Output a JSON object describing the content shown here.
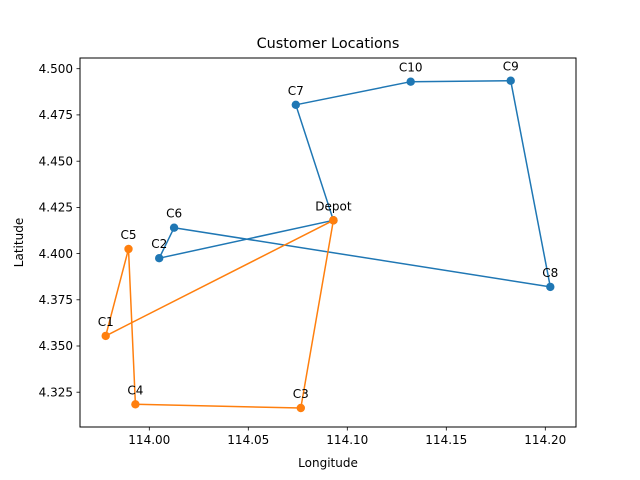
{
  "chart_data": {
    "type": "line",
    "title": "Customer Locations",
    "xlabel": "Longitude",
    "ylabel": "Latitude",
    "xlim": [
      113.965,
      114.2155
    ],
    "ylim": [
      4.3062,
      4.5058
    ],
    "xticks": [
      114.0,
      114.05,
      114.1,
      114.15,
      114.2
    ],
    "xtick_labels": [
      "114.00",
      "114.05",
      "114.10",
      "114.15",
      "114.20"
    ],
    "yticks": [
      4.325,
      4.35,
      4.375,
      4.4,
      4.425,
      4.45,
      4.475,
      4.5
    ],
    "ytick_labels": [
      "4.325",
      "4.350",
      "4.375",
      "4.400",
      "4.425",
      "4.450",
      "4.475",
      "4.500"
    ],
    "grid": false,
    "legend": false,
    "points": [
      {
        "label": "Depot",
        "x": 114.093,
        "y": 4.418
      },
      {
        "label": "C1",
        "x": 113.978,
        "y": 4.3555
      },
      {
        "label": "C2",
        "x": 114.005,
        "y": 4.3975
      },
      {
        "label": "C3",
        "x": 114.0765,
        "y": 4.3165
      },
      {
        "label": "C4",
        "x": 113.993,
        "y": 4.3185
      },
      {
        "label": "C5",
        "x": 113.9895,
        "y": 4.4025
      },
      {
        "label": "C6",
        "x": 114.0125,
        "y": 4.414
      },
      {
        "label": "C7",
        "x": 114.074,
        "y": 4.4805
      },
      {
        "label": "C8",
        "x": 114.2025,
        "y": 4.382
      },
      {
        "label": "C9",
        "x": 114.1825,
        "y": 4.4935
      },
      {
        "label": "C10",
        "x": 114.132,
        "y": 4.493
      }
    ],
    "series": [
      {
        "color": "#1f77b4",
        "route": [
          "Depot",
          "C7",
          "C10",
          "C9",
          "C8",
          "C6",
          "C2",
          "Depot"
        ]
      },
      {
        "color": "#ff7f0e",
        "route": [
          "Depot",
          "C3",
          "C4",
          "C5",
          "C1",
          "Depot"
        ]
      }
    ]
  }
}
